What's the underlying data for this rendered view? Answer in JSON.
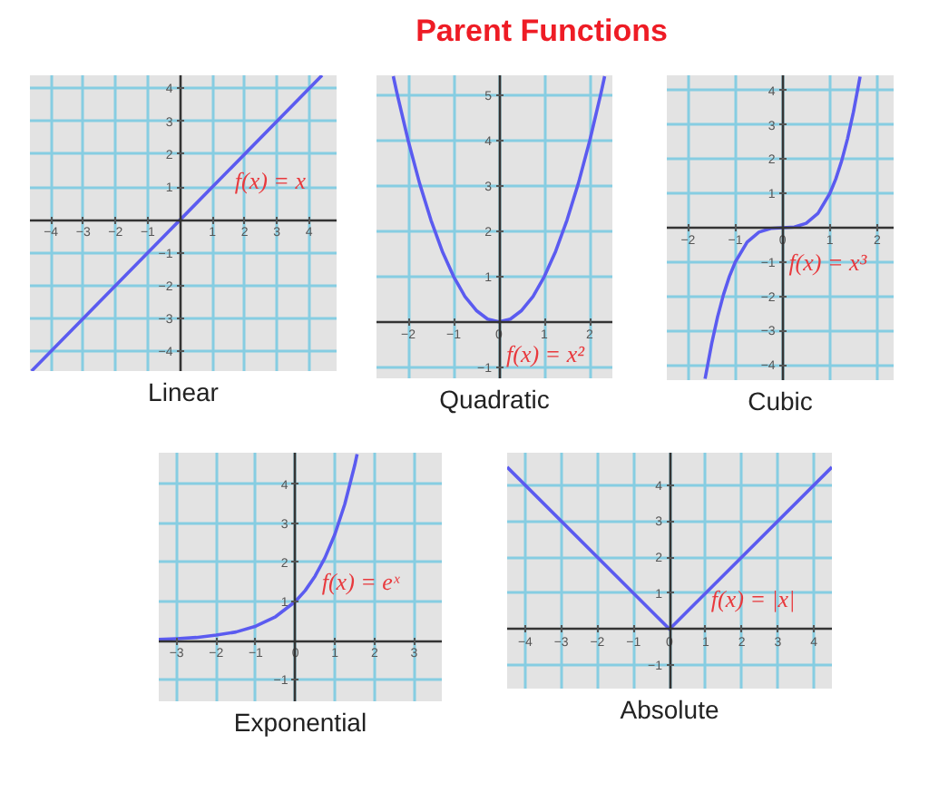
{
  "chart_data": [
    {
      "type": "other",
      "title": "Parent Functions"
    },
    {
      "type": "line",
      "title": "Linear",
      "x": [
        -4.6,
        0,
        4.4
      ],
      "values": [
        -4.6,
        0,
        4.4
      ],
      "color": "#5b5bf0",
      "xlim": [
        -4.65,
        4.85
      ],
      "ylim": [
        -4.6,
        4.4
      ],
      "xticks": [
        -4,
        -3,
        -2,
        -1,
        1,
        2,
        3,
        4
      ],
      "yticks": [
        -4,
        -3,
        -2,
        -1,
        1,
        2,
        3,
        4
      ],
      "grid": true,
      "annotations": [
        "f(x) = x"
      ]
    },
    {
      "type": "line",
      "title": "Quadratic",
      "x": [
        -2.33,
        -2.25,
        -2,
        -1.75,
        -1.5,
        -1.25,
        -1,
        -0.75,
        -0.5,
        -0.25,
        0,
        0.25,
        0.5,
        0.75,
        1,
        1.25,
        1.5,
        1.75,
        2,
        2.25,
        2.33
      ],
      "values": [
        5.43,
        5.06,
        4,
        3.06,
        2.25,
        1.56,
        1,
        0.56,
        0.25,
        0.06,
        0,
        0.06,
        0.25,
        0.56,
        1,
        1.56,
        2.25,
        3.06,
        4,
        5.06,
        5.43
      ],
      "color": "#5b5bf0",
      "xlim": [
        -2.7,
        2.5
      ],
      "ylim": [
        -1.25,
        5.45
      ],
      "xticks": [
        -2,
        -1,
        0,
        1,
        2
      ],
      "yticks": [
        -1,
        1,
        2,
        3,
        4,
        5
      ],
      "grid": true,
      "annotations": [
        "f(x) = x²"
      ]
    },
    {
      "type": "line",
      "title": "Cubic",
      "x": [
        -1.64,
        -1.5,
        -1.375,
        -1.25,
        -1.125,
        -1,
        -0.75,
        -0.5,
        -0.25,
        0,
        0.25,
        0.5,
        0.75,
        1,
        1.125,
        1.25,
        1.375,
        1.5,
        1.64
      ],
      "values": [
        -4.41,
        -3.38,
        -2.6,
        -1.95,
        -1.42,
        -1,
        -0.42,
        -0.13,
        -0.02,
        0,
        0.02,
        0.13,
        0.42,
        1,
        1.42,
        1.95,
        2.6,
        3.38,
        4.41
      ],
      "color": "#5b5bf0",
      "xlim": [
        -2.45,
        2.35
      ],
      "ylim": [
        -4.45,
        4.45
      ],
      "xticks": [
        -2,
        -1,
        0,
        1,
        2
      ],
      "yticks": [
        -4,
        -3,
        -2,
        -1,
        1,
        2,
        3,
        4
      ],
      "grid": true,
      "annotations": [
        "f(x) = x³"
      ]
    },
    {
      "type": "line",
      "title": "Exponential",
      "x": [
        -3.45,
        -3,
        -2.5,
        -2,
        -1.5,
        -1,
        -0.5,
        0,
        0.25,
        0.5,
        0.75,
        1,
        1.25,
        1.5,
        1.56
      ],
      "values": [
        0.03,
        0.05,
        0.08,
        0.14,
        0.22,
        0.37,
        0.61,
        1,
        1.28,
        1.65,
        2.12,
        2.72,
        3.49,
        4.48,
        4.76
      ],
      "color": "#5b5bf0",
      "xlim": [
        -3.45,
        3.7
      ],
      "ylim": [
        -1.55,
        4.8
      ],
      "xticks": [
        -3,
        -2,
        -1,
        0,
        1,
        2,
        3
      ],
      "yticks": [
        -1,
        1,
        2,
        3,
        4
      ],
      "grid": true,
      "annotations": [
        "f(x) = eˣ"
      ]
    },
    {
      "type": "line",
      "title": "Absolute",
      "x": [
        -4.5,
        0,
        4.5
      ],
      "values": [
        4.5,
        0,
        4.5
      ],
      "color": "#5b5bf0",
      "xlim": [
        -4.5,
        4.5
      ],
      "ylim": [
        -1.65,
        4.9
      ],
      "xticks": [
        -4,
        -3,
        -2,
        -1,
        0,
        1,
        2,
        3,
        4
      ],
      "yticks": [
        -1,
        1,
        2,
        3,
        4
      ],
      "grid": true,
      "annotations": [
        "f(x) = |x|"
      ]
    }
  ]
}
